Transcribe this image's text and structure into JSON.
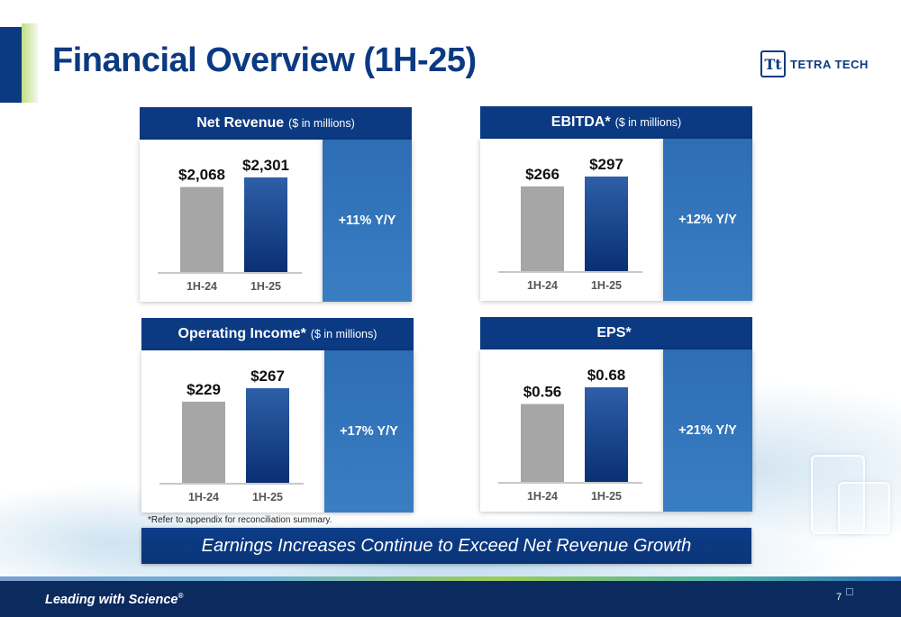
{
  "title": "Financial Overview (1H-25)",
  "logo": {
    "mark": "Tt",
    "text": "TETRA TECH"
  },
  "panels": [
    {
      "header": "Net Revenue",
      "unit": "($ in millions)",
      "growth": "+11% Y/Y"
    },
    {
      "header": "EBITDA*",
      "unit": "($ in millions)",
      "growth": "+12% Y/Y"
    },
    {
      "header": "Operating Income*",
      "unit": "($ in millions)",
      "growth": "+17% Y/Y"
    },
    {
      "header": "EPS*",
      "unit": "",
      "growth": "+21% Y/Y"
    }
  ],
  "chart_data": [
    {
      "type": "bar",
      "title": "Net Revenue ($ in millions)",
      "categories": [
        "1H-24",
        "1H-25"
      ],
      "values": [
        2068,
        2301
      ],
      "labels": [
        "$2,068",
        "$2,301"
      ],
      "ylim": [
        0,
        2301
      ]
    },
    {
      "type": "bar",
      "title": "EBITDA* ($ in millions)",
      "categories": [
        "1H-24",
        "1H-25"
      ],
      "values": [
        266,
        297
      ],
      "labels": [
        "$266",
        "$297"
      ],
      "ylim": [
        0,
        297
      ]
    },
    {
      "type": "bar",
      "title": "Operating Income* ($ in millions)",
      "categories": [
        "1H-24",
        "1H-25"
      ],
      "values": [
        229,
        267
      ],
      "labels": [
        "$229",
        "$267"
      ],
      "ylim": [
        0,
        267
      ]
    },
    {
      "type": "bar",
      "title": "EPS*",
      "categories": [
        "1H-24",
        "1H-25"
      ],
      "values": [
        0.56,
        0.68
      ],
      "labels": [
        "$0.56",
        "$0.68"
      ],
      "ylim": [
        0,
        0.68
      ]
    }
  ],
  "footnote": "*Refer to appendix for reconciliation summary.",
  "banner": "Earnings Increases Continue to Exceed Net Revenue Growth",
  "footer": {
    "tagline": "Leading with Science",
    "tagline_mark": "®",
    "page_number": "7"
  },
  "colors": {
    "navy": "#0b3a82",
    "bar_prior": "#a6a6a6",
    "bar_current_top": "#2e5fa8",
    "bar_current_bottom": "#0a2f73",
    "growth_blue": "#3576bc"
  }
}
